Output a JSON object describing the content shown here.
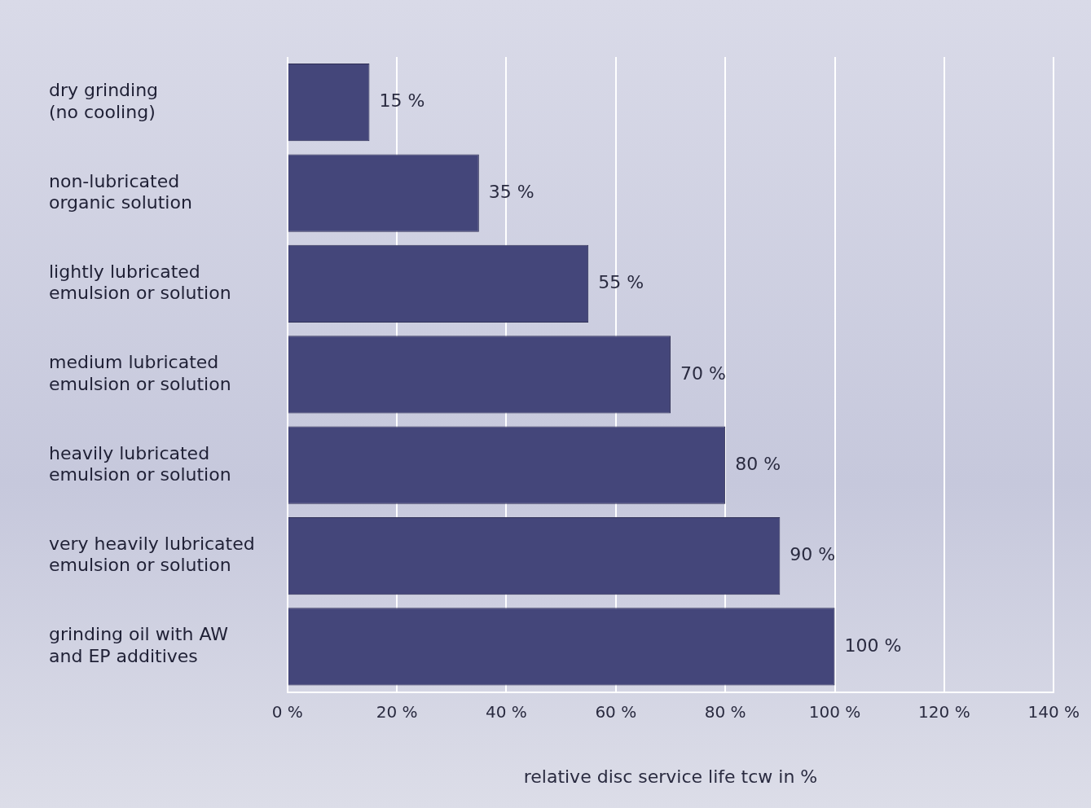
{
  "chart_data": {
    "type": "bar",
    "orientation": "horizontal",
    "categories": [
      [
        "dry grinding",
        "(no cooling)"
      ],
      [
        "non-lubricated",
        "organic solution"
      ],
      [
        "lightly lubricated",
        "emulsion or solution"
      ],
      [
        "medium lubricated",
        "emulsion or solution"
      ],
      [
        "heavily lubricated",
        "emulsion or solution"
      ],
      [
        "very heavily lubricated",
        "emulsion or solution"
      ],
      [
        "grinding oil with AW",
        "and EP additives"
      ]
    ],
    "values": [
      15,
      35,
      55,
      70,
      80,
      90,
      100
    ],
    "value_labels": [
      "15 %",
      "35 %",
      "55 %",
      "70 %",
      "80 %",
      "90 %",
      "100 %"
    ],
    "data_labels": true,
    "color": "#44467a",
    "x_label": "relative disc service life tcw in %",
    "xlim": [
      0,
      140
    ],
    "xticks": [
      {
        "value": 0,
        "label": "0 %"
      },
      {
        "value": 20,
        "label": "20 %"
      },
      {
        "value": 40,
        "label": "40 %"
      },
      {
        "value": 60,
        "label": "60 %"
      },
      {
        "value": 80,
        "label": "80 %"
      },
      {
        "value": 100,
        "label": "100 %"
      },
      {
        "value": 120,
        "label": "120 %"
      },
      {
        "value": 140,
        "label": "140 %"
      }
    ],
    "grid": true
  }
}
